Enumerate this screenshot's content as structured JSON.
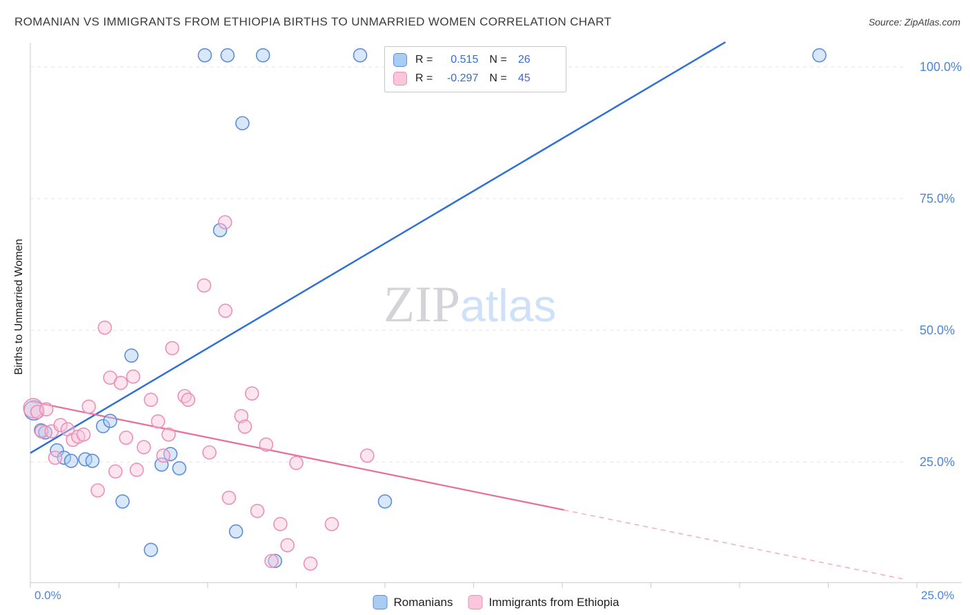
{
  "header": {
    "title": "ROMANIAN VS IMMIGRANTS FROM ETHIOPIA BIRTHS TO UNMARRIED WOMEN CORRELATION CHART",
    "source": "Source: ZipAtlas.com"
  },
  "watermark": {
    "zip": "ZIP",
    "atlas": "atlas"
  },
  "correlation_legend": {
    "rows": [
      {
        "r_label": "R =",
        "r_value": "0.515",
        "n_label": "N =",
        "n_value": "26"
      },
      {
        "r_label": "R =",
        "r_value": "-0.297",
        "n_label": "N =",
        "n_value": "45"
      }
    ]
  },
  "chart_data": {
    "type": "scatter",
    "title": "ROMANIAN VS IMMIGRANTS FROM ETHIOPIA BIRTHS TO UNMARRIED WOMEN CORRELATION CHART",
    "xlabel": "",
    "ylabel": "Births to Unmarried Women",
    "x_range": [
      0,
      0.25
    ],
    "y_range": [
      0,
      1.046
    ],
    "grid": "horizontal-dashed",
    "legend_position": "bottom-center",
    "x_tick_labels": [
      {
        "v": 0,
        "label": "0.0%"
      },
      {
        "v": 0.25,
        "label": "25.0%"
      }
    ],
    "y_tick_labels": [
      {
        "v": 1.0,
        "label": "100.0%"
      },
      {
        "v": 0.75,
        "label": "75.0%"
      },
      {
        "v": 0.5,
        "label": "50.0%"
      },
      {
        "v": 0.25,
        "label": "25.0%"
      }
    ],
    "colors": {
      "axis_labels": "#4a86d8",
      "grid": "#e3e3ea",
      "axis": "#c9c9cf",
      "watermark_zip": "#d4d4d8",
      "watermark_atlas": "#cfe1f8",
      "accent_values": "#3b6cc9"
    },
    "series": [
      {
        "name": "Romanians",
        "fill": "#a9ccf3",
        "stroke": "#5b8dd9",
        "r": 0.515,
        "n": 26,
        "points": [
          [
            0.0492,
            1.022
          ],
          [
            0.0556,
            1.022
          ],
          [
            0.0656,
            1.022
          ],
          [
            0.093,
            1.022
          ],
          [
            0.2225,
            1.022
          ],
          [
            0.0598,
            0.893
          ],
          [
            0.0535,
            0.69
          ],
          [
            0.0285,
            0.452
          ],
          [
            0.001,
            0.348,
            14
          ],
          [
            0.003,
            0.31
          ],
          [
            0.0042,
            0.306
          ],
          [
            0.0075,
            0.272
          ],
          [
            0.0095,
            0.258
          ],
          [
            0.0115,
            0.252
          ],
          [
            0.0155,
            0.255
          ],
          [
            0.0175,
            0.252
          ],
          [
            0.0205,
            0.318
          ],
          [
            0.0225,
            0.328
          ],
          [
            0.026,
            0.175
          ],
          [
            0.034,
            0.083
          ],
          [
            0.037,
            0.245
          ],
          [
            0.0395,
            0.265
          ],
          [
            0.042,
            0.238
          ],
          [
            0.058,
            0.118
          ],
          [
            0.069,
            0.062
          ],
          [
            0.1,
            0.175
          ]
        ]
      },
      {
        "name": "Immigrants from Ethiopia",
        "fill": "#f9c6db",
        "stroke": "#ed8fb4",
        "r": -0.297,
        "n": 45,
        "points": [
          [
            0.0008,
            0.352,
            14
          ],
          [
            0.002,
            0.345
          ],
          [
            0.0032,
            0.308
          ],
          [
            0.0045,
            0.35
          ],
          [
            0.006,
            0.308
          ],
          [
            0.007,
            0.258
          ],
          [
            0.0085,
            0.32
          ],
          [
            0.0105,
            0.312
          ],
          [
            0.012,
            0.292
          ],
          [
            0.0135,
            0.298
          ],
          [
            0.015,
            0.302
          ],
          [
            0.0165,
            0.355
          ],
          [
            0.019,
            0.196
          ],
          [
            0.021,
            0.505
          ],
          [
            0.0225,
            0.41
          ],
          [
            0.024,
            0.232
          ],
          [
            0.0255,
            0.4
          ],
          [
            0.027,
            0.296
          ],
          [
            0.029,
            0.412
          ],
          [
            0.03,
            0.235
          ],
          [
            0.032,
            0.278
          ],
          [
            0.034,
            0.368
          ],
          [
            0.036,
            0.327
          ],
          [
            0.0375,
            0.262
          ],
          [
            0.039,
            0.302
          ],
          [
            0.04,
            0.466
          ],
          [
            0.0435,
            0.375
          ],
          [
            0.0445,
            0.368
          ],
          [
            0.049,
            0.585
          ],
          [
            0.0505,
            0.268
          ],
          [
            0.0549,
            0.705
          ],
          [
            0.055,
            0.537
          ],
          [
            0.056,
            0.182
          ],
          [
            0.0595,
            0.337
          ],
          [
            0.0605,
            0.317
          ],
          [
            0.0625,
            0.38
          ],
          [
            0.064,
            0.157
          ],
          [
            0.0665,
            0.283
          ],
          [
            0.068,
            0.062
          ],
          [
            0.0705,
            0.132
          ],
          [
            0.0725,
            0.092
          ],
          [
            0.075,
            0.248
          ],
          [
            0.079,
            0.057
          ],
          [
            0.085,
            0.132
          ],
          [
            0.095,
            0.262
          ]
        ]
      }
    ],
    "trend_lines": [
      {
        "series": "Romanians",
        "slope": 3.98,
        "intercept": 0.267,
        "solid": [
          0,
          0.196
        ],
        "color": "#2e6fd8",
        "width": 2.5
      },
      {
        "series": "Immigrants from Ethiopia",
        "slope": -1.37,
        "intercept": 0.365,
        "solid": [
          0,
          0.1505
        ],
        "dashed": [
          0.1505,
          0.2465
        ],
        "color": "#e8709a",
        "dash_color": "#f3afc6",
        "width": 2.3
      }
    ]
  }
}
